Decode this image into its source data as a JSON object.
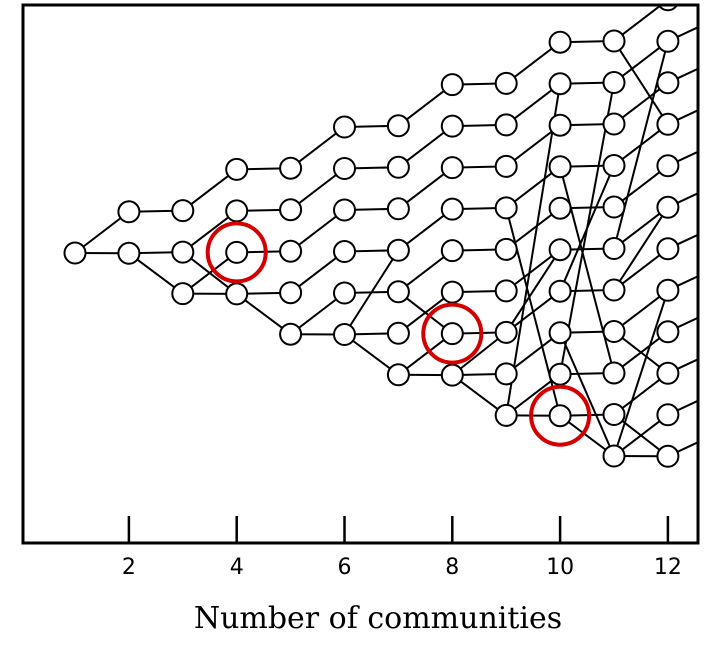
{
  "x_axis": {
    "label": "Number of communities",
    "ticks": [
      {
        "value": 2,
        "label": "2"
      },
      {
        "value": 4,
        "label": "4"
      },
      {
        "value": 6,
        "label": "6"
      },
      {
        "value": 8,
        "label": "8"
      },
      {
        "value": 10,
        "label": "10"
      },
      {
        "value": 12,
        "label": "12"
      }
    ]
  },
  "diagram": {
    "node_rows_per_column": [
      1,
      2,
      3,
      4,
      5,
      6,
      7,
      8,
      9,
      10,
      11,
      12
    ],
    "highlighted_columns": [
      4,
      8,
      10
    ],
    "colors": {
      "line": "#000000",
      "node_fill": "#ffffff",
      "highlight": "#d40000"
    }
  }
}
